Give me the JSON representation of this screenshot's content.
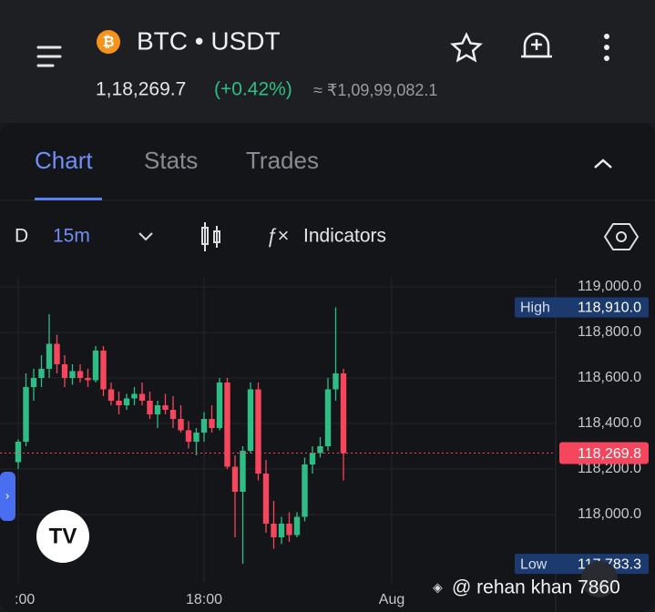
{
  "header": {
    "pair": "BTC • USDT",
    "price": "1,18,269.7",
    "change": "(+0.42%)",
    "fiat": "≈ ₹1,09,99,082.1"
  },
  "tabs": [
    "Chart",
    "Stats",
    "Trades"
  ],
  "toolbar": {
    "period": "D",
    "interval": "15m",
    "indicators": "Indicators"
  },
  "x_labels": [
    ":00",
    "18:00",
    "Aug"
  ],
  "watermark": "@ rehan khan 7860",
  "chart_data": {
    "type": "candlestick",
    "up_color": "#2ebd85",
    "down_color": "#f6465d",
    "ylim": [
      117700,
      119040
    ],
    "yticks": [
      {
        "value": 119000,
        "label": "119,000.0"
      },
      {
        "value": 118800,
        "label": "118,800.0"
      },
      {
        "value": 118600,
        "label": "118,600.0"
      },
      {
        "value": 118400,
        "label": "118,400.0"
      },
      {
        "value": 118200,
        "label": "118,200.0"
      },
      {
        "value": 118000,
        "label": "118,000.0"
      }
    ],
    "grid": true,
    "open": [
      118230,
      118320,
      118560,
      118600,
      118640,
      118750,
      118660,
      118600,
      118630,
      118600,
      118590,
      118720,
      118550,
      118500,
      118480,
      118510,
      118530,
      118500,
      118440,
      118480,
      118460,
      118420,
      118370,
      118320,
      118360,
      118420,
      118380,
      118580,
      118210,
      118100,
      118280,
      118550,
      118180,
      117960,
      117900,
      117960,
      117910,
      117990,
      118220,
      118270,
      118300,
      118550,
      118620
    ],
    "high": [
      118330,
      118620,
      118640,
      118700,
      118880,
      118790,
      118700,
      118660,
      118660,
      118640,
      118740,
      118740,
      118580,
      118540,
      118530,
      118560,
      118580,
      118540,
      118500,
      118530,
      118520,
      118480,
      118410,
      118380,
      118450,
      118480,
      118600,
      118600,
      118260,
      118300,
      118580,
      118580,
      118240,
      118060,
      117990,
      118010,
      118010,
      118250,
      118300,
      118340,
      118600,
      118910,
      118640
    ],
    "low": [
      118200,
      118300,
      118500,
      118560,
      118600,
      118620,
      118560,
      118570,
      118580,
      118560,
      118580,
      118520,
      118480,
      118440,
      118460,
      118480,
      118480,
      118420,
      118380,
      118440,
      118380,
      118360,
      118290,
      118260,
      118320,
      118360,
      118370,
      118200,
      117900,
      117783.3,
      118270,
      118150,
      117920,
      117850,
      117870,
      117880,
      117900,
      117970,
      118180,
      118250,
      118280,
      118500,
      118150
    ],
    "close": [
      118320,
      118560,
      118600,
      118640,
      118750,
      118660,
      118600,
      118630,
      118600,
      118590,
      118720,
      118550,
      118500,
      118480,
      118510,
      118530,
      118500,
      118440,
      118480,
      118460,
      118420,
      118370,
      118320,
      118360,
      118420,
      118380,
      118580,
      118210,
      118100,
      118280,
      118550,
      118180,
      117960,
      117900,
      117960,
      117910,
      117990,
      118220,
      118270,
      118300,
      118550,
      118620,
      118269.8
    ],
    "high_label": "High",
    "high_value": {
      "value": 118910,
      "label": "118,910.0"
    },
    "low_label": "Low",
    "low_value": {
      "value": 117783.3,
      "label": "117,783.3"
    },
    "last_price": {
      "value": 118269.8,
      "label": "118,269.8"
    }
  }
}
